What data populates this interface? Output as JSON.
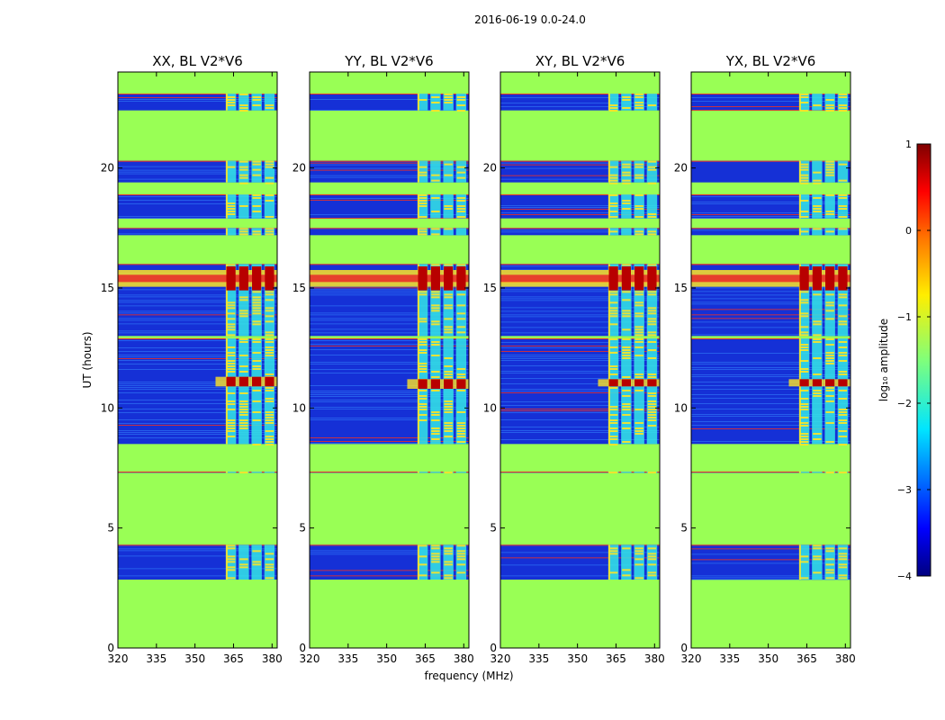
{
  "figure_title": "2016-06-19 0.0-24.0",
  "colorbar": {
    "label": "log₁₀ amplitude",
    "ticks": [
      "1",
      "0",
      "−1",
      "−2",
      "−3",
      "−4"
    ],
    "range": [
      -4,
      1
    ],
    "colormap": "jet"
  },
  "colors": {
    "background_fill": "#99ff55",
    "noise_band_dark": "#1530d6",
    "noise_band_light": "#2a6af0",
    "rfi_line": "#e8302a",
    "rfi_strong": "#b80000",
    "speckle_cyan": "#34e6e6",
    "speckle_yellow": "#ffe422"
  },
  "chart_data": [
    {
      "type": "heatmap",
      "title": "XX, BL V2*V6",
      "xlabel": "",
      "ylabel": "UT (hours)",
      "xlim": [
        320,
        382
      ],
      "ylim": [
        0,
        24
      ],
      "xticks": [
        "320",
        "335",
        "350",
        "365",
        "380"
      ],
      "yticks": [
        "0",
        "5",
        "10",
        "15",
        "20"
      ],
      "data_bands_hours": [
        [
          2.85,
          4.3
        ],
        [
          7.3,
          7.35
        ],
        [
          8.5,
          12.9
        ],
        [
          13.0,
          16.0
        ],
        [
          17.2,
          17.5
        ],
        [
          17.9,
          18.9
        ],
        [
          19.4,
          20.3
        ],
        [
          22.4,
          23.1
        ]
      ],
      "rfi_channels_mhz": [
        364,
        369,
        374,
        379
      ],
      "strong_rfi_hours": [
        [
          14.9,
          15.9
        ],
        [
          10.9,
          11.3
        ]
      ]
    },
    {
      "type": "heatmap",
      "title": "YY, BL V2*V6",
      "xlabel": "frequency (MHz)",
      "ylabel": "",
      "xlim": [
        320,
        382
      ],
      "ylim": [
        0,
        24
      ],
      "xticks": [
        "320",
        "335",
        "350",
        "365",
        "380"
      ],
      "yticks": [
        "0",
        "5",
        "10",
        "15",
        "20"
      ],
      "data_bands_hours": [
        [
          2.85,
          4.3
        ],
        [
          7.3,
          7.35
        ],
        [
          8.5,
          12.9
        ],
        [
          13.0,
          16.0
        ],
        [
          17.2,
          17.5
        ],
        [
          17.9,
          18.9
        ],
        [
          19.4,
          20.3
        ],
        [
          22.4,
          23.1
        ]
      ],
      "rfi_channels_mhz": [
        364,
        369,
        374,
        379
      ],
      "strong_rfi_hours": [
        [
          14.9,
          15.9
        ],
        [
          10.8,
          11.2
        ]
      ]
    },
    {
      "type": "heatmap",
      "title": "XY, BL V2*V6",
      "xlabel": "",
      "ylabel": "",
      "xlim": [
        320,
        382
      ],
      "ylim": [
        0,
        24
      ],
      "xticks": [
        "320",
        "335",
        "350",
        "365",
        "380"
      ],
      "yticks": [
        "0",
        "5",
        "10",
        "15",
        "20"
      ],
      "data_bands_hours": [
        [
          2.85,
          4.3
        ],
        [
          7.3,
          7.35
        ],
        [
          8.5,
          12.9
        ],
        [
          13.0,
          16.0
        ],
        [
          17.2,
          17.5
        ],
        [
          17.9,
          18.9
        ],
        [
          19.4,
          20.3
        ],
        [
          22.4,
          23.1
        ]
      ],
      "rfi_channels_mhz": [
        364,
        369,
        374,
        379
      ],
      "strong_rfi_hours": [
        [
          14.9,
          15.9
        ],
        [
          10.9,
          11.2
        ]
      ]
    },
    {
      "type": "heatmap",
      "title": "YX, BL V2*V6",
      "xlabel": "",
      "ylabel": "",
      "xlim": [
        320,
        382
      ],
      "ylim": [
        0,
        24
      ],
      "xticks": [
        "320",
        "335",
        "350",
        "365",
        "380"
      ],
      "yticks": [
        "0",
        "5",
        "10",
        "15",
        "20"
      ],
      "data_bands_hours": [
        [
          2.85,
          4.3
        ],
        [
          7.3,
          7.35
        ],
        [
          8.5,
          12.9
        ],
        [
          13.0,
          16.0
        ],
        [
          17.2,
          17.5
        ],
        [
          17.9,
          18.9
        ],
        [
          19.4,
          20.3
        ],
        [
          22.4,
          23.1
        ]
      ],
      "rfi_channels_mhz": [
        364,
        369,
        374,
        379
      ],
      "strong_rfi_hours": [
        [
          14.9,
          15.9
        ],
        [
          10.9,
          11.2
        ]
      ]
    }
  ]
}
